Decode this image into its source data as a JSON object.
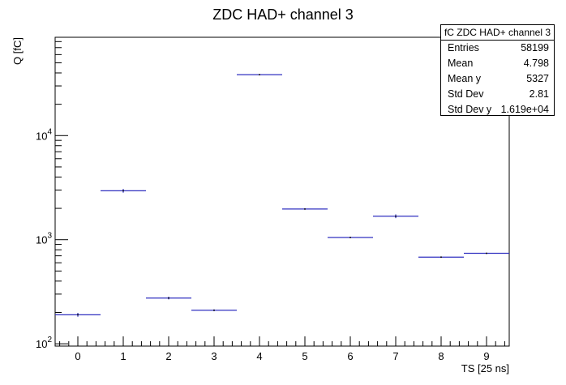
{
  "chart_data": {
    "type": "scatter",
    "title": "ZDC HAD+ channel 3",
    "xlabel": "TS [25 ns]",
    "ylabel": "Q [fC]",
    "xlim": [
      -0.5,
      9.5
    ],
    "ylim": [
      95,
      88000
    ],
    "yscale": "log",
    "grid": false,
    "x_ticks": [
      "0",
      "1",
      "2",
      "3",
      "4",
      "5",
      "6",
      "7",
      "8",
      "9"
    ],
    "y_ticks": [
      {
        "value": 100,
        "base": "10",
        "exp": "2"
      },
      {
        "value": 1000,
        "base": "10",
        "exp": "3"
      },
      {
        "value": 10000,
        "base": "10",
        "exp": "4"
      }
    ],
    "series": [
      {
        "color": "#3030c0",
        "x": [
          0,
          1,
          2,
          3,
          4,
          5,
          6,
          7,
          8,
          9
        ],
        "y": [
          190,
          2950,
          275,
          210,
          38500,
          1970,
          1050,
          1680,
          680,
          740
        ],
        "yerr": [
          8,
          120,
          8,
          4,
          400,
          25,
          12,
          70,
          8,
          6
        ],
        "xerr": 0.5
      }
    ]
  },
  "stats": {
    "title": "fC ZDC HAD+ channel 3",
    "rows": [
      {
        "label": "Entries",
        "value": "58199"
      },
      {
        "label": "Mean",
        "value": "4.798"
      },
      {
        "label": "Mean y",
        "value": "5327"
      },
      {
        "label": "Std Dev",
        "value": "2.81"
      },
      {
        "label": "Std Dev y",
        "value": "1.619e+04"
      }
    ]
  }
}
